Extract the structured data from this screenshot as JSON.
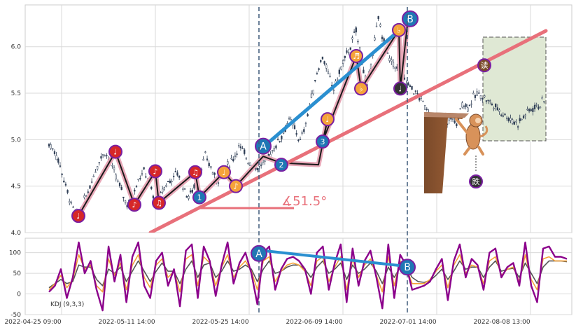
{
  "chart_data": [
    {
      "type": "candlestick",
      "panel": "price",
      "x_ticks": [
        "2022-04-25 09:00",
        "2022-05-11 14:00",
        "2022-05-25 14:00",
        "2022-06-09 14:00",
        "2022-07-01 14:00",
        "2022-08-08 13:00"
      ],
      "y_ticks": [
        4.0,
        4.5,
        5.0,
        5.5,
        6.0
      ],
      "ylim": [
        4.0,
        6.45
      ],
      "grid": true,
      "series": [
        {
          "name": "price_path",
          "values": [
            4.95,
            4.88,
            4.72,
            4.5,
            4.3,
            4.18,
            4.3,
            4.45,
            4.62,
            4.78,
            4.87,
            4.75,
            4.6,
            4.45,
            4.3,
            4.42,
            4.58,
            4.66,
            4.52,
            4.32,
            4.42,
            4.52,
            4.58,
            4.65,
            4.5,
            4.38,
            4.5,
            4.65,
            4.82,
            4.7,
            4.56,
            4.62,
            4.72,
            4.8,
            4.93,
            4.85,
            4.75,
            4.7,
            4.73,
            4.78,
            4.88,
            4.98,
            5.08,
            5.22,
            5.12,
            4.98,
            5.18,
            5.45,
            5.72,
            5.9,
            5.7,
            5.55,
            5.72,
            5.88,
            6.0,
            6.18,
            5.85,
            5.55,
            5.95,
            6.3,
            6.05,
            5.85,
            5.8,
            5.7,
            5.62,
            5.55,
            5.48,
            5.4,
            5.3,
            5.2,
            5.05,
            5.1,
            5.25,
            5.15,
            5.4,
            5.35,
            5.45,
            5.5,
            5.45,
            5.4,
            5.35,
            5.3,
            5.25,
            5.2,
            5.18,
            5.25,
            5.32,
            5.35,
            5.38,
            5.45
          ]
        }
      ],
      "zigzag_values": [
        4.18,
        4.87,
        4.3,
        4.66,
        4.32,
        4.65,
        4.38,
        4.65,
        4.5,
        4.82,
        4.75,
        4.73,
        5.22,
        4.98,
        5.9,
        5.55,
        6.18,
        5.55,
        6.3
      ],
      "markers": [
        {
          "glyph": "♩",
          "value": 4.18,
          "color": "#d62728"
        },
        {
          "glyph": "♩",
          "value": 4.87,
          "color": "#d62728"
        },
        {
          "glyph": "♪",
          "value": 4.3,
          "color": "#d62728"
        },
        {
          "glyph": "♪",
          "value": 4.66,
          "color": "#d62728"
        },
        {
          "glyph": "♫",
          "value": 4.32,
          "color": "#d62728"
        },
        {
          "glyph": "♫",
          "value": 4.65,
          "color": "#d62728"
        },
        {
          "glyph": "1",
          "value": 4.38,
          "color": "#1f77b4"
        },
        {
          "glyph": "♩",
          "value": 4.65,
          "color": "#f5a33a"
        },
        {
          "glyph": "♪",
          "value": 4.5,
          "color": "#f5a33a"
        },
        {
          "glyph": "A",
          "value": 4.93,
          "color": "#1f77b4"
        },
        {
          "glyph": "2",
          "value": 4.73,
          "color": "#1f77b4"
        },
        {
          "glyph": "3",
          "value": 4.98,
          "color": "#1f77b4"
        },
        {
          "glyph": "♩",
          "value": 5.22,
          "color": "#f5a33a"
        },
        {
          "glyph": "♬",
          "value": 5.9,
          "color": "#f5a33a"
        },
        {
          "glyph": "♭",
          "value": 5.55,
          "color": "#f5a33a"
        },
        {
          "glyph": "♭",
          "value": 6.18,
          "color": "#f5a33a"
        },
        {
          "glyph": "♩",
          "value": 5.55,
          "color": "#333333"
        },
        {
          "glyph": "B",
          "value": 6.3,
          "color": "#1f77b4"
        },
        {
          "glyph": "读",
          "value": 5.8,
          "color": "#7a4a2a"
        },
        {
          "glyph": "跌",
          "value": 4.55,
          "color": "#333333"
        }
      ],
      "annotations": [
        {
          "text": "∡51.5°",
          "color": "#e8707a"
        }
      ]
    },
    {
      "type": "line",
      "panel": "indicator",
      "label": "KDJ (9,3,3)",
      "y_ticks": [
        -50,
        0,
        50,
        100
      ],
      "ylim": [
        -50,
        135
      ],
      "grid": true,
      "series": [
        {
          "name": "J",
          "color": "#8b008b",
          "values": [
            5,
            20,
            60,
            -10,
            40,
            125,
            50,
            80,
            10,
            -40,
            115,
            30,
            95,
            -20,
            90,
            125,
            20,
            -10,
            80,
            100,
            20,
            60,
            -30,
            105,
            120,
            -10,
            115,
            80,
            -5,
            70,
            125,
            25,
            75,
            100,
            50,
            -25,
            100,
            115,
            10,
            60,
            85,
            90,
            80,
            60,
            0,
            100,
            115,
            10,
            75,
            120,
            -20,
            110,
            20,
            80,
            105,
            40,
            -35,
            120,
            -10,
            95,
            70,
            10,
            15,
            20,
            30,
            60,
            85,
            -15,
            80,
            120,
            40,
            85,
            70,
            10,
            100,
            110,
            40,
            65,
            75,
            20,
            125,
            20,
            -20,
            110,
            115,
            90,
            90,
            85
          ]
        },
        {
          "name": "K",
          "color": "#f5a33a",
          "values": [
            10,
            25,
            45,
            15,
            35,
            95,
            60,
            70,
            20,
            5,
            85,
            45,
            75,
            10,
            70,
            95,
            40,
            15,
            70,
            85,
            40,
            55,
            5,
            85,
            95,
            20,
            90,
            75,
            20,
            65,
            95,
            40,
            65,
            80,
            55,
            10,
            80,
            90,
            30,
            55,
            70,
            75,
            70,
            55,
            20,
            80,
            90,
            30,
            65,
            90,
            10,
            85,
            40,
            70,
            85,
            45,
            5,
            90,
            20,
            80,
            65,
            25,
            25,
            25,
            35,
            55,
            70,
            15,
            70,
            95,
            50,
            70,
            65,
            25,
            80,
            90,
            45,
            60,
            65,
            30,
            95,
            35,
            10,
            85,
            90,
            80,
            80,
            80
          ]
        },
        {
          "name": "D",
          "color": "#555555",
          "values": [
            15,
            25,
            35,
            25,
            30,
            70,
            65,
            65,
            35,
            20,
            60,
            50,
            65,
            30,
            55,
            80,
            55,
            30,
            55,
            75,
            55,
            55,
            25,
            60,
            80,
            40,
            70,
            75,
            40,
            55,
            80,
            55,
            60,
            70,
            60,
            30,
            60,
            80,
            50,
            55,
            65,
            70,
            70,
            60,
            40,
            65,
            80,
            50,
            60,
            75,
            35,
            70,
            50,
            60,
            75,
            55,
            25,
            65,
            40,
            65,
            65,
            40,
            30,
            28,
            32,
            45,
            60,
            35,
            55,
            80,
            60,
            65,
            65,
            40,
            65,
            80,
            55,
            60,
            62,
            40,
            75,
            50,
            25,
            65,
            80,
            80,
            80,
            78
          ]
        }
      ],
      "markers": [
        {
          "glyph": "A",
          "value": 98,
          "color": "#1f77b4"
        },
        {
          "glyph": "B",
          "value": 65,
          "color": "#1f77b4"
        }
      ]
    }
  ]
}
